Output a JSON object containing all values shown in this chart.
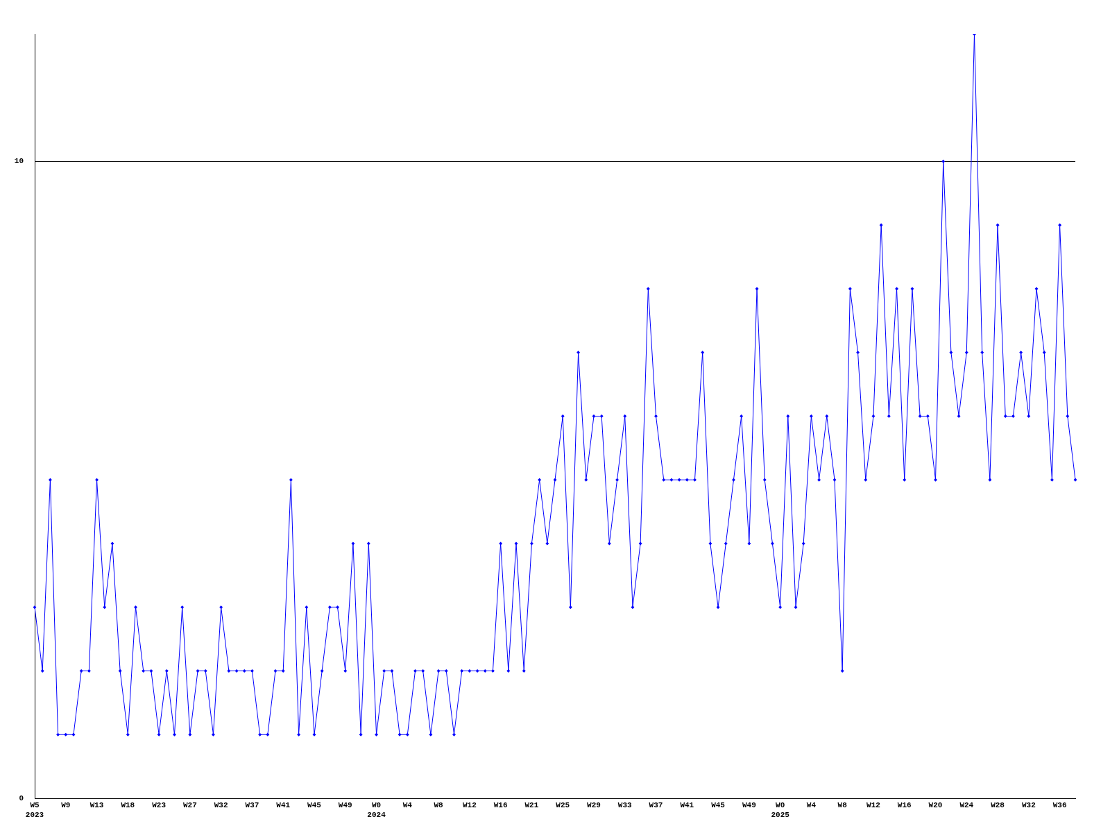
{
  "chart_data": {
    "type": "line",
    "categories": [
      "W5\n2023",
      null,
      null,
      null,
      "W9",
      null,
      null,
      null,
      "W13",
      null,
      null,
      null,
      "W18",
      null,
      null,
      null,
      "W23",
      null,
      null,
      null,
      "W27",
      null,
      null,
      null,
      "W32",
      null,
      null,
      null,
      "W37",
      null,
      null,
      null,
      "W41",
      null,
      null,
      null,
      "W45",
      null,
      null,
      null,
      "W49",
      null,
      null,
      null,
      "W0\n2024",
      null,
      null,
      null,
      "W4",
      null,
      null,
      null,
      "W8",
      null,
      null,
      null,
      "W12",
      null,
      null,
      null,
      "W16",
      null,
      null,
      null,
      "W21",
      null,
      null,
      null,
      "W25",
      null,
      null,
      null,
      "W29",
      null,
      null,
      null,
      "W33",
      null,
      null,
      null,
      "W37",
      null,
      null,
      null,
      "W41",
      null,
      null,
      null,
      "W45",
      null,
      null,
      null,
      "W49",
      null,
      null,
      null,
      "W0\n2025",
      null,
      null,
      null,
      "W4",
      null,
      null,
      null,
      "W8",
      null,
      null,
      null,
      "W12",
      null,
      null,
      null,
      "W16",
      null,
      null,
      null,
      "W20",
      null,
      null,
      null,
      "W24",
      null,
      null,
      null,
      "W28",
      null,
      null,
      null,
      "W32",
      null,
      null,
      null,
      "W36",
      null,
      null
    ],
    "series": [
      {
        "color": "#0000ff",
        "values": [
          3,
          2,
          5,
          1,
          1,
          1,
          2,
          2,
          5,
          3,
          4,
          2,
          1,
          3,
          2,
          2,
          1,
          2,
          1,
          3,
          1,
          2,
          2,
          1,
          3,
          2,
          2,
          2,
          2,
          1,
          1,
          2,
          2,
          5,
          1,
          3,
          1,
          2,
          3,
          3,
          2,
          4,
          1,
          4,
          1,
          2,
          2,
          1,
          1,
          2,
          2,
          1,
          2,
          2,
          1,
          2,
          2,
          2,
          2,
          2,
          4,
          2,
          4,
          2,
          4,
          5,
          4,
          5,
          6,
          3,
          7,
          5,
          6,
          6,
          4,
          5,
          6,
          3,
          4,
          8,
          6,
          5,
          5,
          5,
          5,
          5,
          7,
          4,
          3,
          4,
          5,
          6,
          4,
          8,
          5,
          4,
          3,
          6,
          3,
          4,
          6,
          5,
          6,
          5,
          2,
          8,
          7,
          5,
          6,
          9,
          6,
          8,
          5,
          8,
          6,
          6,
          5,
          10,
          7,
          6,
          7,
          12,
          7,
          5,
          9,
          6,
          6,
          7,
          6,
          8,
          7,
          5,
          9,
          6,
          5
        ]
      }
    ],
    "ylim": [
      0,
      12
    ],
    "yticks": [
      0,
      10
    ],
    "grid": "y",
    "marker": "diamond",
    "legend": false
  }
}
